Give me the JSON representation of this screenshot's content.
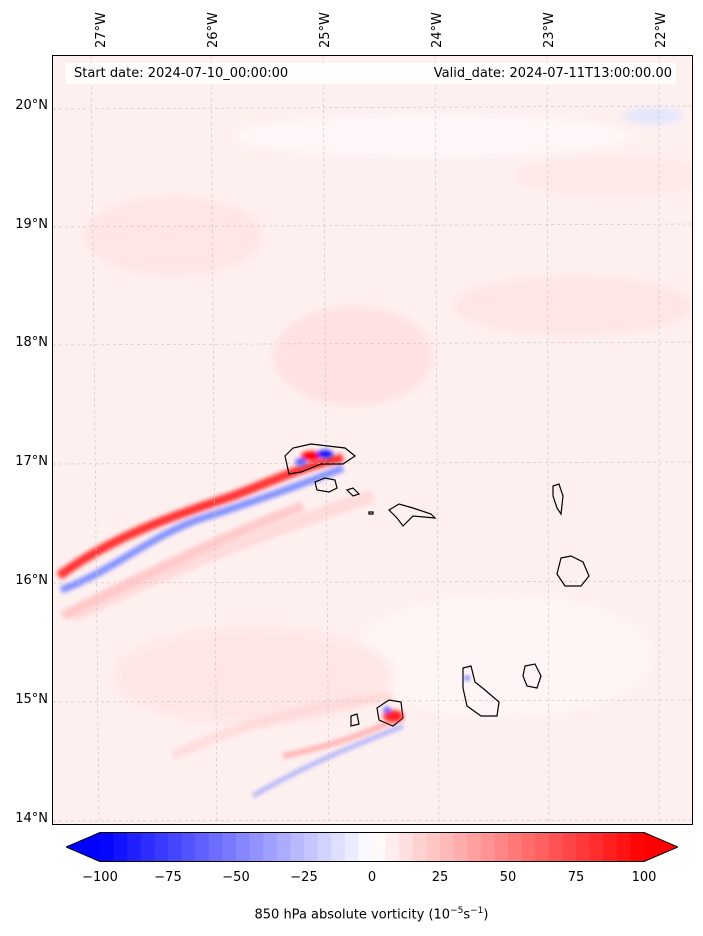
{
  "header": {
    "start_label": "Start date: 2024-07-10_00:00:00",
    "valid_label": "Valid_date: 2024-07-11T13:00:00.00"
  },
  "longitude_labels": [
    "27°W",
    "26°W",
    "25°W",
    "24°W",
    "23°W",
    "22°W"
  ],
  "latitude_labels": [
    "20°N",
    "19°N",
    "18°N",
    "17°N",
    "16°N",
    "15°N",
    "14°N"
  ],
  "colorbar": {
    "ticks": [
      "−100",
      "−75",
      "−50",
      "−25",
      "0",
      "25",
      "50",
      "75",
      "100"
    ],
    "min": -100,
    "max": 100,
    "label_prefix": "850 hPa absolute vorticity (10",
    "label_exp1": "−5",
    "label_mid": "s",
    "label_exp2": "−1",
    "label_suffix": ")"
  },
  "colors": {
    "positive": "#ff0000",
    "negative": "#0000ff",
    "coast": "#000000"
  },
  "map": {
    "islands": [
      "Santo Antão",
      "São Vicente",
      "Santa Luzia",
      "São Nicolau",
      "Sal",
      "Boa Vista",
      "Maio",
      "Santiago",
      "Fogo",
      "Brava"
    ]
  }
}
